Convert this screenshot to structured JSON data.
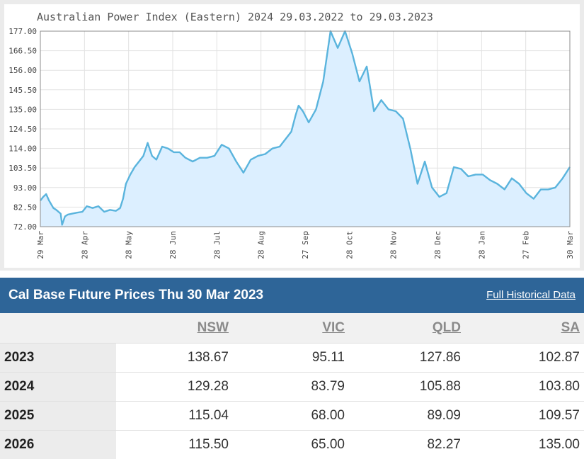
{
  "chart_data": {
    "type": "area",
    "title": "Australian Power Index (Eastern) 2024 29.03.2022 to 29.03.2023",
    "ylim": [
      72.0,
      177.0
    ],
    "y_ticks": [
      "177.00",
      "166.50",
      "156.00",
      "145.50",
      "135.00",
      "124.50",
      "114.00",
      "103.50",
      "93.00",
      "82.50",
      "72.00"
    ],
    "x_ticks": [
      "29 Mar",
      "28 Apr",
      "28 May",
      "28 Jun",
      "28 Jul",
      "28 Aug",
      "27 Sep",
      "28 Oct",
      "28 Nov",
      "28 Dec",
      "28 Jan",
      "27 Feb",
      "30 Mar"
    ],
    "xlabel": "",
    "ylabel": "",
    "grid": true,
    "line_color": "#5ab4dd",
    "fill_color": "#dcefff",
    "x": [
      0,
      2,
      4,
      6,
      9,
      11,
      14,
      15,
      17,
      19,
      22,
      25,
      29,
      32,
      36,
      40,
      44,
      48,
      52,
      55,
      57,
      59,
      62,
      65,
      68,
      71,
      74,
      77,
      80,
      84,
      88,
      92,
      96,
      100,
      105,
      110,
      115,
      120,
      125,
      130,
      135,
      140,
      145,
      150,
      155,
      160,
      165,
      170,
      173,
      176,
      178,
      181,
      185,
      190,
      195,
      200,
      205,
      210,
      215,
      220,
      225,
      230,
      235,
      240,
      245,
      250,
      255,
      260,
      265,
      270,
      275,
      280,
      285,
      290,
      295,
      300,
      305,
      310,
      315,
      320,
      325,
      330,
      335,
      340,
      345,
      350,
      355,
      360,
      365
    ],
    "values": [
      86,
      88,
      89.5,
      86,
      82,
      81,
      79,
      73,
      77.5,
      78.5,
      79,
      79.5,
      80,
      83,
      82,
      83,
      80,
      81,
      80.5,
      82,
      87,
      95,
      100,
      104,
      107,
      110,
      117,
      110,
      108,
      115,
      114,
      112,
      112,
      109,
      107,
      109,
      109,
      110,
      116,
      114,
      107,
      101,
      108,
      110,
      111,
      114,
      115,
      120,
      123,
      132,
      137,
      134,
      128,
      135,
      150,
      178,
      168,
      177,
      165,
      150,
      158,
      134,
      140,
      135,
      134,
      130,
      114,
      95,
      107,
      93,
      88,
      90,
      104,
      103,
      99,
      100,
      100,
      97,
      95,
      92,
      98,
      95,
      90,
      87,
      92,
      92,
      93,
      98,
      104
    ]
  },
  "table": {
    "title": "Cal Base Future Prices Thu 30 Mar 2023",
    "link_label": "Full Historical Data",
    "columns": [
      "NSW",
      "VIC",
      "QLD",
      "SA"
    ],
    "rows": [
      {
        "year": "2023",
        "values": [
          "138.67",
          "95.11",
          "127.86",
          "102.87"
        ]
      },
      {
        "year": "2024",
        "values": [
          "129.28",
          "83.79",
          "105.88",
          "103.80"
        ]
      },
      {
        "year": "2025",
        "values": [
          "115.04",
          "68.00",
          "89.09",
          "109.57"
        ]
      },
      {
        "year": "2026",
        "values": [
          "115.50",
          "65.00",
          "82.27",
          "135.00"
        ]
      }
    ]
  }
}
